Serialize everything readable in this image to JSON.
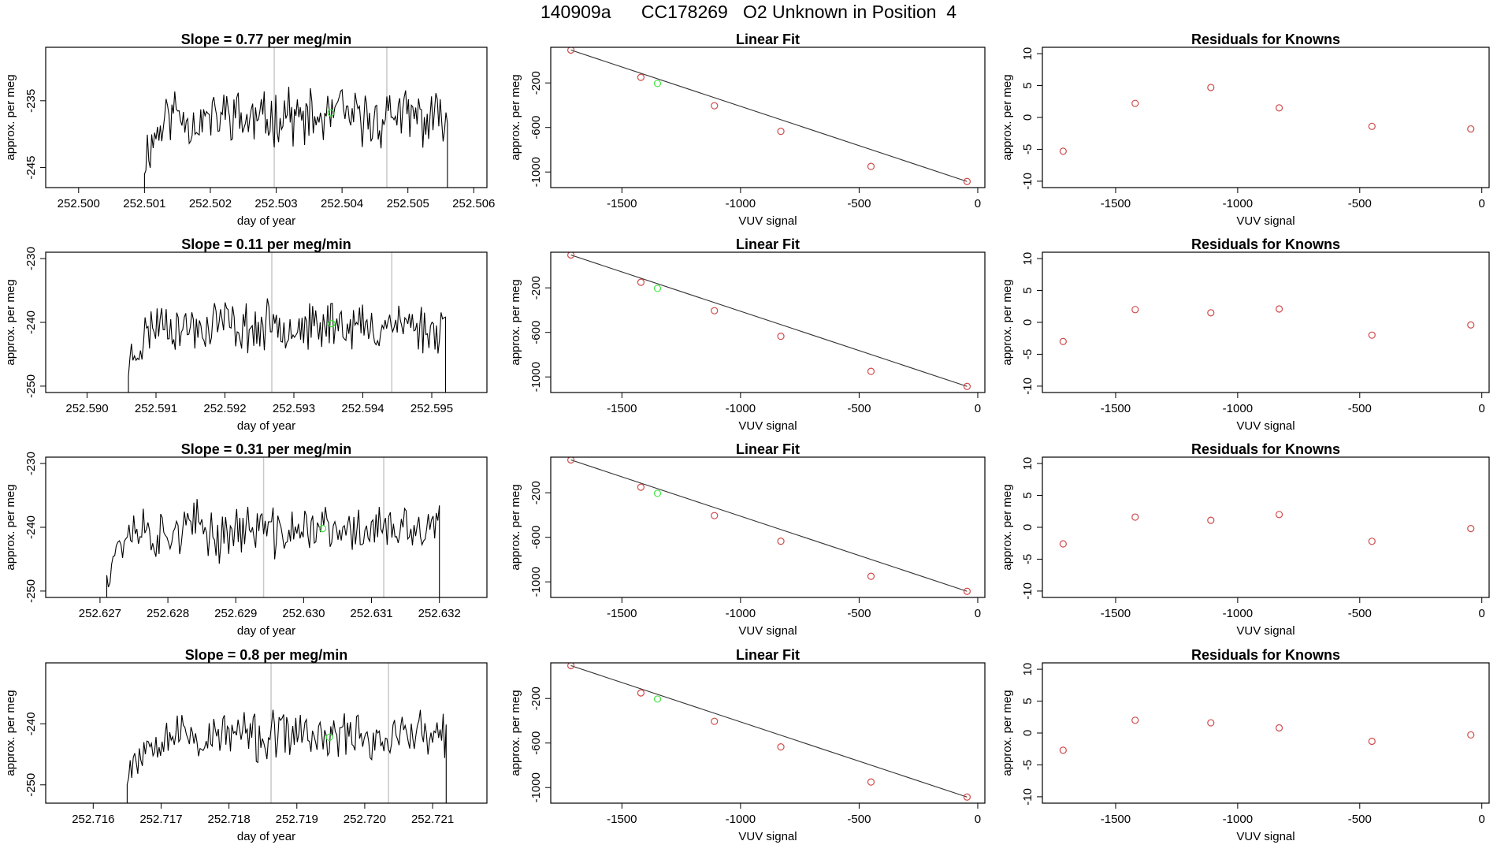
{
  "figure": {
    "title": "140909a      CC178269   O2 Unknown in Position  4"
  },
  "colors": {
    "trace": "#000000",
    "marker_known": "#d04a4a",
    "marker_unknown": "#3ee63e",
    "vline": "#c8c8c8",
    "fit_line": "#333333"
  },
  "chart_data": [
    {
      "panel": "timeseries",
      "row": 1,
      "type": "line",
      "title": "Slope =  0.77  per meg/min",
      "xlabel": "day of year",
      "ylabel": "approx. per meg",
      "xlim": [
        252.4995,
        252.5062
      ],
      "ylim": [
        -248,
        -227
      ],
      "xticks": [
        252.5,
        252.501,
        252.502,
        252.503,
        252.504,
        252.505,
        252.506
      ],
      "xtick_labels": [
        "252.500",
        "252.501",
        "252.502",
        "252.503",
        "252.504",
        "252.505",
        "252.506"
      ],
      "yticks": [
        -245,
        -235
      ],
      "ytick_labels": [
        "-245",
        "-235"
      ],
      "trace_range": [
        252.501,
        252.5056
      ],
      "vlines": [
        252.50297,
        252.50468
      ],
      "marker": {
        "x": 252.50383,
        "y": -236.8
      },
      "seed": 11,
      "base": -237.5,
      "amp": 3.2
    },
    {
      "panel": "fit",
      "row": 1,
      "type": "scatter",
      "title": "Linear Fit",
      "xlabel": "VUV signal",
      "ylabel": "approx. per meg",
      "xlim": [
        -1800,
        30
      ],
      "ylim": [
        -1140,
        120
      ],
      "xticks": [
        -1500,
        -1000,
        -500,
        0
      ],
      "xtick_labels": [
        "-1500",
        "-1000",
        "-500",
        "0"
      ],
      "yticks": [
        -1000,
        -600,
        -200
      ],
      "ytick_labels": [
        "-1000",
        "-600",
        "-200"
      ],
      "points_x": [
        -1715,
        -1420,
        -1110,
        -830,
        -450,
        -45
      ],
      "points_y": [
        95,
        -150,
        -405,
        -635,
        -950,
        -1085
      ],
      "unknown": {
        "x": -1350,
        "y": -205
      },
      "fit_line": {
        "x": [
          -1715,
          -45
        ],
        "y": [
          95,
          -1085
        ]
      }
    },
    {
      "panel": "residuals",
      "row": 1,
      "type": "scatter",
      "title": "Residuals for Knowns",
      "xlabel": "VUV signal",
      "ylabel": "approx. per meg",
      "xlim": [
        -1800,
        30
      ],
      "ylim": [
        -11,
        11
      ],
      "xticks": [
        -1500,
        -1000,
        -500,
        0
      ],
      "xtick_labels": [
        "-1500",
        "-1000",
        "-500",
        "0"
      ],
      "yticks": [
        -10,
        -5,
        0,
        5,
        10
      ],
      "ytick_labels": [
        "-10",
        "-5",
        "0",
        "5",
        "10"
      ],
      "points_x": [
        -1715,
        -1420,
        -1110,
        -830,
        -450,
        -45
      ],
      "points_y": [
        -5.3,
        2.2,
        4.7,
        1.5,
        -1.4,
        -1.8
      ]
    },
    {
      "panel": "timeseries",
      "row": 2,
      "type": "line",
      "title": "Slope =  0.11  per meg/min",
      "xlabel": "day of year",
      "ylabel": "approx. per meg",
      "xlim": [
        252.5894,
        252.5958
      ],
      "ylim": [
        -251,
        -229
      ],
      "xticks": [
        252.59,
        252.591,
        252.592,
        252.593,
        252.594,
        252.595
      ],
      "xtick_labels": [
        "252.590",
        "252.591",
        "252.592",
        "252.593",
        "252.594",
        "252.595"
      ],
      "yticks": [
        -250,
        -240,
        -230
      ],
      "ytick_labels": [
        "-250",
        "-240",
        "-230"
      ],
      "trace_range": [
        252.5906,
        252.5952
      ],
      "vlines": [
        252.59268,
        252.59442
      ],
      "marker": {
        "x": 252.59355,
        "y": -240.2
      },
      "seed": 23,
      "base": -240.5,
      "amp": 3.0
    },
    {
      "panel": "fit",
      "row": 2,
      "type": "scatter",
      "title": "Linear Fit",
      "xlabel": "VUV signal",
      "ylabel": "approx. per meg",
      "xlim": [
        -1800,
        30
      ],
      "ylim": [
        -1140,
        120
      ],
      "xticks": [
        -1500,
        -1000,
        -500,
        0
      ],
      "xtick_labels": [
        "-1500",
        "-1000",
        "-500",
        "0"
      ],
      "yticks": [
        -1000,
        -600,
        -200
      ],
      "ytick_labels": [
        "-1000",
        "-600",
        "-200"
      ],
      "points_x": [
        -1715,
        -1420,
        -1110,
        -830,
        -450,
        -45
      ],
      "points_y": [
        95,
        -150,
        -405,
        -635,
        -950,
        -1085
      ],
      "unknown": {
        "x": -1350,
        "y": -205
      },
      "fit_line": {
        "x": [
          -1715,
          -45
        ],
        "y": [
          95,
          -1085
        ]
      }
    },
    {
      "panel": "residuals",
      "row": 2,
      "type": "scatter",
      "title": "Residuals for Knowns",
      "xlabel": "VUV signal",
      "ylabel": "approx. per meg",
      "xlim": [
        -1800,
        30
      ],
      "ylim": [
        -11,
        11
      ],
      "xticks": [
        -1500,
        -1000,
        -500,
        0
      ],
      "xtick_labels": [
        "-1500",
        "-1000",
        "-500",
        "0"
      ],
      "yticks": [
        -10,
        -5,
        0,
        5,
        10
      ],
      "ytick_labels": [
        "-10",
        "-5",
        "0",
        "5",
        "10"
      ],
      "points_x": [
        -1715,
        -1420,
        -1110,
        -830,
        -450,
        -45
      ],
      "points_y": [
        -3.0,
        2.0,
        1.5,
        2.1,
        -2.0,
        -0.4
      ]
    },
    {
      "panel": "timeseries",
      "row": 3,
      "type": "line",
      "title": "Slope =  0.31  per meg/min",
      "xlabel": "day of year",
      "ylabel": "approx. per meg",
      "xlim": [
        252.6262,
        252.6327
      ],
      "ylim": [
        -251,
        -229
      ],
      "xticks": [
        252.627,
        252.628,
        252.629,
        252.63,
        252.631,
        252.632
      ],
      "xtick_labels": [
        "252.627",
        "252.628",
        "252.629",
        "252.630",
        "252.631",
        "252.632"
      ],
      "yticks": [
        -250,
        -240,
        -230
      ],
      "ytick_labels": [
        "-250",
        "-240",
        "-230"
      ],
      "trace_range": [
        252.6271,
        252.632
      ],
      "vlines": [
        252.62941,
        252.63118
      ],
      "marker": {
        "x": 252.63028,
        "y": -240.2
      },
      "seed": 37,
      "base": -240.5,
      "amp": 3.1
    },
    {
      "panel": "fit",
      "row": 3,
      "type": "scatter",
      "title": "Linear Fit",
      "xlabel": "VUV signal",
      "ylabel": "approx. per meg",
      "xlim": [
        -1800,
        30
      ],
      "ylim": [
        -1140,
        120
      ],
      "xticks": [
        -1500,
        -1000,
        -500,
        0
      ],
      "xtick_labels": [
        "-1500",
        "-1000",
        "-500",
        "0"
      ],
      "yticks": [
        -1000,
        -600,
        -200
      ],
      "ytick_labels": [
        "-1000",
        "-600",
        "-200"
      ],
      "points_x": [
        -1715,
        -1420,
        -1110,
        -830,
        -450,
        -45
      ],
      "points_y": [
        95,
        -150,
        -405,
        -635,
        -950,
        -1085
      ],
      "unknown": {
        "x": -1350,
        "y": -205
      },
      "fit_line": {
        "x": [
          -1715,
          -45
        ],
        "y": [
          95,
          -1085
        ]
      }
    },
    {
      "panel": "residuals",
      "row": 3,
      "type": "scatter",
      "title": "Residuals for Knowns",
      "xlabel": "VUV signal",
      "ylabel": "approx. per meg",
      "xlim": [
        -1800,
        30
      ],
      "ylim": [
        -11,
        11
      ],
      "xticks": [
        -1500,
        -1000,
        -500,
        0
      ],
      "xtick_labels": [
        "-1500",
        "-1000",
        "-500",
        "0"
      ],
      "yticks": [
        -10,
        -5,
        0,
        5,
        10
      ],
      "ytick_labels": [
        "-10",
        "-5",
        "0",
        "5",
        "10"
      ],
      "points_x": [
        -1715,
        -1420,
        -1110,
        -830,
        -450,
        -45
      ],
      "points_y": [
        -2.6,
        1.6,
        1.1,
        2.0,
        -2.2,
        -0.2
      ]
    },
    {
      "panel": "timeseries",
      "row": 4,
      "type": "line",
      "title": "Slope =  0.8  per meg/min",
      "xlabel": "day of year",
      "ylabel": "approx. per meg",
      "xlim": [
        252.7153,
        252.7218
      ],
      "ylim": [
        -253,
        -230
      ],
      "xticks": [
        252.716,
        252.717,
        252.718,
        252.719,
        252.72,
        252.721
      ],
      "xtick_labels": [
        "252.716",
        "252.717",
        "252.718",
        "252.719",
        "252.720",
        "252.721"
      ],
      "yticks": [
        -250,
        -240
      ],
      "ytick_labels": [
        "-250",
        "-240"
      ],
      "trace_range": [
        252.7165,
        252.7212
      ],
      "vlines": [
        252.71862,
        252.72035
      ],
      "marker": {
        "x": 252.71948,
        "y": -242.2
      },
      "seed": 53,
      "base": -242.0,
      "amp": 3.0
    },
    {
      "panel": "fit",
      "row": 4,
      "type": "scatter",
      "title": "Linear Fit",
      "xlabel": "VUV signal",
      "ylabel": "approx. per meg",
      "xlim": [
        -1800,
        30
      ],
      "ylim": [
        -1140,
        120
      ],
      "xticks": [
        -1500,
        -1000,
        -500,
        0
      ],
      "xtick_labels": [
        "-1500",
        "-1000",
        "-500",
        "0"
      ],
      "yticks": [
        -1000,
        -600,
        -200
      ],
      "ytick_labels": [
        "-1000",
        "-600",
        "-200"
      ],
      "points_x": [
        -1715,
        -1420,
        -1110,
        -830,
        -450,
        -45
      ],
      "points_y": [
        95,
        -150,
        -405,
        -635,
        -950,
        -1085
      ],
      "unknown": {
        "x": -1350,
        "y": -205
      },
      "fit_line": {
        "x": [
          -1715,
          -45
        ],
        "y": [
          95,
          -1085
        ]
      }
    },
    {
      "panel": "residuals",
      "row": 4,
      "type": "scatter",
      "title": "Residuals for Knowns",
      "xlabel": "VUV signal",
      "ylabel": "approx. per meg",
      "xlim": [
        -1800,
        30
      ],
      "ylim": [
        -11,
        11
      ],
      "xticks": [
        -1500,
        -1000,
        -500,
        0
      ],
      "xtick_labels": [
        "-1500",
        "-1000",
        "-500",
        "0"
      ],
      "yticks": [
        -10,
        -5,
        0,
        5,
        10
      ],
      "ytick_labels": [
        "-10",
        "-5",
        "0",
        "5",
        "10"
      ],
      "points_x": [
        -1715,
        -1420,
        -1110,
        -830,
        -450,
        -45
      ],
      "points_y": [
        -2.7,
        2.0,
        1.6,
        0.8,
        -1.3,
        -0.3
      ]
    }
  ]
}
